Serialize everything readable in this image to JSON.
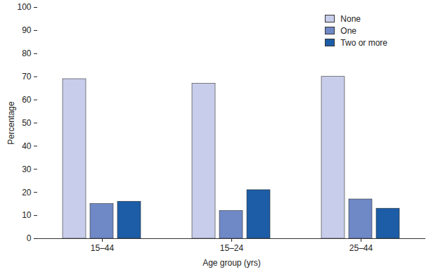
{
  "chart_data": {
    "type": "bar",
    "categories": [
      "15–44",
      "15–24",
      "25–44"
    ],
    "series": [
      {
        "name": "None",
        "color": "#c7cdea",
        "values": [
          69,
          67,
          70
        ]
      },
      {
        "name": "One",
        "color": "#6f88c6",
        "values": [
          15,
          12,
          17
        ]
      },
      {
        "name": "Two or more",
        "color": "#1d5ca6",
        "values": [
          16,
          21,
          13
        ]
      }
    ],
    "x_label": "Age group (yrs)",
    "y_label": "Percentage",
    "ylim": [
      0,
      100
    ],
    "yticks": [
      0,
      10,
      20,
      30,
      40,
      50,
      60,
      70,
      80,
      90,
      100
    ],
    "legend": "upper right",
    "grid": false
  }
}
